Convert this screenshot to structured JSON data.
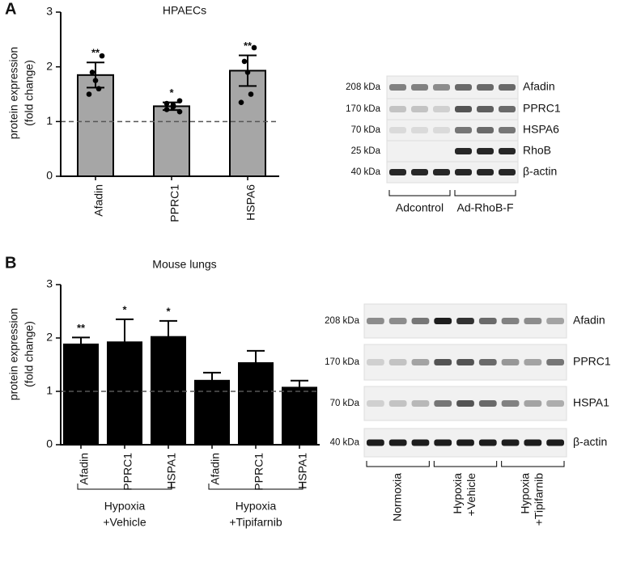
{
  "chart_data": [
    {
      "type": "bar",
      "panel": "A",
      "title": "HPAECs",
      "ylabel": [
        "protein expression",
        "(fold change)"
      ],
      "categories": [
        "Afadin",
        "PPRC1",
        "HSPA6"
      ],
      "values": [
        1.85,
        1.28,
        1.93
      ],
      "errors": [
        0.23,
        0.07,
        0.28
      ],
      "significance": [
        "**",
        "*",
        "**"
      ],
      "points": [
        [
          2.2,
          1.9,
          1.75,
          1.6,
          1.5
        ],
        [
          1.38,
          1.33,
          1.3,
          1.27,
          1.22,
          1.18
        ],
        [
          2.35,
          2.1,
          1.9,
          1.5,
          1.35
        ]
      ],
      "color": "#a6a6a6",
      "ylim": [
        0,
        3
      ],
      "yticks": [
        0,
        1,
        2,
        3
      ],
      "reference_line": 1
    },
    {
      "type": "bar",
      "panel": "B",
      "title": "Mouse lungs",
      "ylabel": [
        "protein expression",
        "(fold change)"
      ],
      "categories": [
        "Afadin",
        "PPRC1",
        "HSPA1",
        "Afadin",
        "PPRC1",
        "HSPA1"
      ],
      "values": [
        1.88,
        1.92,
        2.02,
        1.2,
        1.53,
        1.07
      ],
      "errors": [
        0.13,
        0.43,
        0.3,
        0.15,
        0.23,
        0.13
      ],
      "significance": [
        "**",
        "*",
        "*",
        null,
        null,
        null
      ],
      "groups": [
        {
          "label": [
            "Hypoxia",
            "+Vehicle"
          ],
          "start": 0,
          "end": 2
        },
        {
          "label": [
            "Hypoxia",
            "+Tipifarnib"
          ],
          "start": 3,
          "end": 5
        }
      ],
      "color": "#000000",
      "ylim": [
        0,
        3
      ],
      "yticks": [
        0,
        1,
        2,
        3
      ],
      "reference_line": 1
    }
  ],
  "blots": [
    {
      "rows": [
        {
          "mw": "208 kDa",
          "protein": "Afadin"
        },
        {
          "mw": "170 kDa",
          "protein": "PPRC1"
        },
        {
          "mw": "70 kDa",
          "protein": "HSPA6"
        },
        {
          "mw": "25 kDa",
          "protein": "RhoB"
        },
        {
          "mw": "40 kDa",
          "protein": "β-actin"
        }
      ],
      "groups": [
        [
          "Adcontrol"
        ],
        [
          "Ad-RhoB-F"
        ]
      ]
    },
    {
      "rows": [
        {
          "mw": "208 kDa",
          "protein": "Afadin"
        },
        {
          "mw": "170 kDa",
          "protein": "PPRC1"
        },
        {
          "mw": "70 kDa",
          "protein": "HSPA1"
        },
        {
          "mw": "40 kDa",
          "protein": "β-actin"
        }
      ],
      "groups": [
        [
          "Normoxia"
        ],
        [
          "Hypoxia",
          "+Vehicle"
        ],
        [
          "Hypoxia",
          "+Tipifarnib"
        ]
      ]
    }
  ]
}
